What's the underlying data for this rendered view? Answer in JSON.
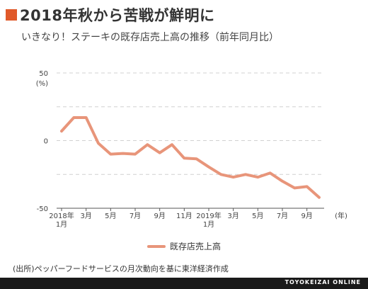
{
  "title": "2018年秋から苦戦が鮮明に",
  "subtitle": "いきなり！ステーキの既存店売上高の推移（前年同月比）",
  "source": "(出所)ペッパーフードサービスの月次動向を基に東洋経済作成",
  "footer": "TOYOKEIZAI ONLINE",
  "colors": {
    "accent": "#e0592a",
    "line": "#e8957a",
    "footer": "#1a1a1a",
    "grid": "#d0d0d0",
    "axis": "#555555"
  },
  "chart_data": {
    "type": "line",
    "y_unit_label": "(%)",
    "x_unit_label": "(年)",
    "ylim": [
      -50,
      50
    ],
    "yticks": [
      50,
      0,
      -50
    ],
    "grid": true,
    "legend_position": "bottom-center",
    "x_tick_labels": [
      {
        "index": 0,
        "line1": "2018年",
        "line2": "1月"
      },
      {
        "index": 2,
        "line1": "3月",
        "line2": ""
      },
      {
        "index": 4,
        "line1": "5月",
        "line2": ""
      },
      {
        "index": 6,
        "line1": "7月",
        "line2": ""
      },
      {
        "index": 8,
        "line1": "9月",
        "line2": ""
      },
      {
        "index": 10,
        "line1": "11月",
        "line2": ""
      },
      {
        "index": 12,
        "line1": "2019年",
        "line2": "1月"
      },
      {
        "index": 14,
        "line1": "3月",
        "line2": ""
      },
      {
        "index": 16,
        "line1": "5月",
        "line2": ""
      },
      {
        "index": 18,
        "line1": "7月",
        "line2": ""
      },
      {
        "index": 20,
        "line1": "9月",
        "line2": ""
      }
    ],
    "series": [
      {
        "name": "既存店売上高",
        "x": [
          "2018-01",
          "2018-02",
          "2018-03",
          "2018-04",
          "2018-05",
          "2018-06",
          "2018-07",
          "2018-08",
          "2018-09",
          "2018-10",
          "2018-11",
          "2018-12",
          "2019-01",
          "2019-02",
          "2019-03",
          "2019-04",
          "2019-05",
          "2019-06",
          "2019-07",
          "2019-08",
          "2019-09",
          "2019-10"
        ],
        "values": [
          7,
          17,
          17,
          -2,
          -10,
          -9.5,
          -10,
          -3,
          -9,
          -3,
          -13,
          -13.5,
          -19.5,
          -25,
          -27,
          -25,
          -27,
          -24,
          -30,
          -35,
          -34,
          -42
        ]
      }
    ]
  }
}
